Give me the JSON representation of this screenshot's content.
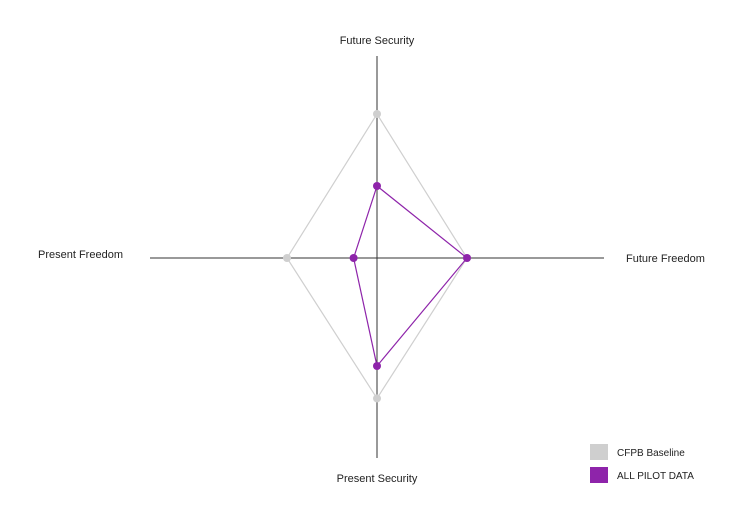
{
  "chart_data": {
    "type": "radar",
    "axes": [
      "Future Security",
      "Future Freedom",
      "Present Security",
      "Present Freedom"
    ],
    "scale": [
      0,
      1
    ],
    "series": [
      {
        "name": "CFPB Baseline",
        "color": "#cfcfcf",
        "values": [
          0.8,
          0.5,
          0.78,
          0.5
        ]
      },
      {
        "name": "ALL PILOT DATA",
        "color": "#8e24aa",
        "values": [
          0.4,
          0.5,
          0.6,
          0.13
        ]
      }
    ],
    "legend_position": "bottom-right"
  }
}
